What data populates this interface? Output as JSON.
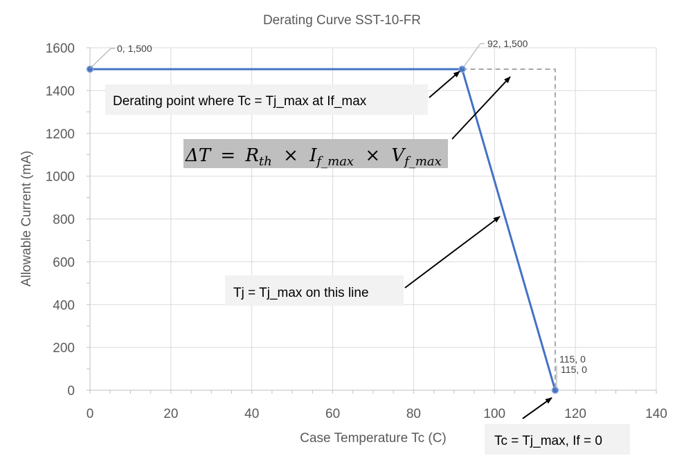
{
  "chart_data": {
    "type": "line",
    "title": "Derating Curve SST-10-FR",
    "xlabel": "Case Temperature Tc (C)",
    "ylabel": "Allowable Current (mA)",
    "xlim": [
      0,
      140
    ],
    "ylim": [
      0,
      1600
    ],
    "x_ticks": [
      0,
      20,
      40,
      60,
      80,
      100,
      120,
      140
    ],
    "y_ticks": [
      0,
      200,
      400,
      600,
      800,
      1000,
      1200,
      1400,
      1600
    ],
    "grid": true,
    "series": [
      {
        "name": "Allowable Current",
        "color": "#4472c4",
        "x": [
          0,
          92,
          115
        ],
        "y": [
          1500,
          1500,
          0
        ]
      }
    ],
    "reference_line": {
      "color": "#a6a6a6",
      "x": [
        92,
        115,
        115
      ],
      "y": [
        1500,
        1500,
        0
      ]
    },
    "point_labels": [
      "0, 1,500",
      "92, 1,500",
      "115, 0",
      "115, 0"
    ],
    "annotations": {
      "derating_point": "Derating point where Tc = Tj_max at If_max",
      "line_note": "Tj = Tj_max on this line",
      "end_point": "Tc = Tj_max, If = 0"
    },
    "formula": {
      "delta_t": "ΔT",
      "eq": "=",
      "r": "R",
      "r_sub": "th",
      "times": "×",
      "i": "I",
      "i_sub": "f_max",
      "v": "V",
      "v_sub": "f_max"
    }
  }
}
